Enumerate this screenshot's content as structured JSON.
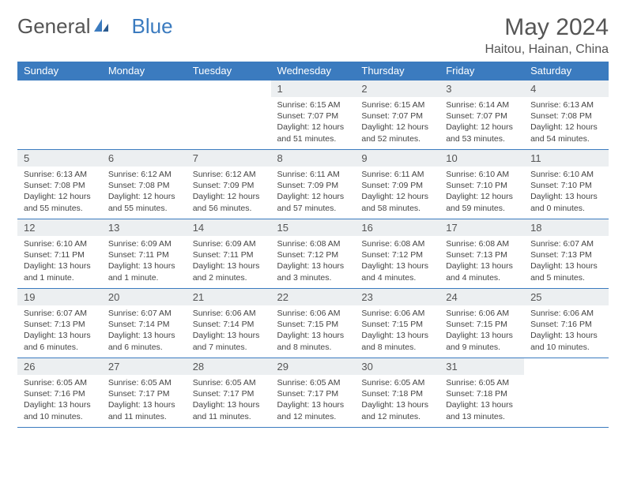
{
  "logo": {
    "text1": "General",
    "text2": "Blue"
  },
  "title": "May 2024",
  "location": "Haitou, Hainan, China",
  "colors": {
    "header_bg": "#3b7bbf",
    "header_text": "#ffffff",
    "daynum_bg": "#eceff1",
    "border": "#3b7bbf",
    "text": "#444444",
    "title_text": "#555555"
  },
  "weekdays": [
    "Sunday",
    "Monday",
    "Tuesday",
    "Wednesday",
    "Thursday",
    "Friday",
    "Saturday"
  ],
  "weeks": [
    [
      null,
      null,
      null,
      {
        "n": "1",
        "sr": "6:15 AM",
        "ss": "7:07 PM",
        "dl": "12 hours and 51 minutes."
      },
      {
        "n": "2",
        "sr": "6:15 AM",
        "ss": "7:07 PM",
        "dl": "12 hours and 52 minutes."
      },
      {
        "n": "3",
        "sr": "6:14 AM",
        "ss": "7:07 PM",
        "dl": "12 hours and 53 minutes."
      },
      {
        "n": "4",
        "sr": "6:13 AM",
        "ss": "7:08 PM",
        "dl": "12 hours and 54 minutes."
      }
    ],
    [
      {
        "n": "5",
        "sr": "6:13 AM",
        "ss": "7:08 PM",
        "dl": "12 hours and 55 minutes."
      },
      {
        "n": "6",
        "sr": "6:12 AM",
        "ss": "7:08 PM",
        "dl": "12 hours and 55 minutes."
      },
      {
        "n": "7",
        "sr": "6:12 AM",
        "ss": "7:09 PM",
        "dl": "12 hours and 56 minutes."
      },
      {
        "n": "8",
        "sr": "6:11 AM",
        "ss": "7:09 PM",
        "dl": "12 hours and 57 minutes."
      },
      {
        "n": "9",
        "sr": "6:11 AM",
        "ss": "7:09 PM",
        "dl": "12 hours and 58 minutes."
      },
      {
        "n": "10",
        "sr": "6:10 AM",
        "ss": "7:10 PM",
        "dl": "12 hours and 59 minutes."
      },
      {
        "n": "11",
        "sr": "6:10 AM",
        "ss": "7:10 PM",
        "dl": "13 hours and 0 minutes."
      }
    ],
    [
      {
        "n": "12",
        "sr": "6:10 AM",
        "ss": "7:11 PM",
        "dl": "13 hours and 1 minute."
      },
      {
        "n": "13",
        "sr": "6:09 AM",
        "ss": "7:11 PM",
        "dl": "13 hours and 1 minute."
      },
      {
        "n": "14",
        "sr": "6:09 AM",
        "ss": "7:11 PM",
        "dl": "13 hours and 2 minutes."
      },
      {
        "n": "15",
        "sr": "6:08 AM",
        "ss": "7:12 PM",
        "dl": "13 hours and 3 minutes."
      },
      {
        "n": "16",
        "sr": "6:08 AM",
        "ss": "7:12 PM",
        "dl": "13 hours and 4 minutes."
      },
      {
        "n": "17",
        "sr": "6:08 AM",
        "ss": "7:13 PM",
        "dl": "13 hours and 4 minutes."
      },
      {
        "n": "18",
        "sr": "6:07 AM",
        "ss": "7:13 PM",
        "dl": "13 hours and 5 minutes."
      }
    ],
    [
      {
        "n": "19",
        "sr": "6:07 AM",
        "ss": "7:13 PM",
        "dl": "13 hours and 6 minutes."
      },
      {
        "n": "20",
        "sr": "6:07 AM",
        "ss": "7:14 PM",
        "dl": "13 hours and 6 minutes."
      },
      {
        "n": "21",
        "sr": "6:06 AM",
        "ss": "7:14 PM",
        "dl": "13 hours and 7 minutes."
      },
      {
        "n": "22",
        "sr": "6:06 AM",
        "ss": "7:15 PM",
        "dl": "13 hours and 8 minutes."
      },
      {
        "n": "23",
        "sr": "6:06 AM",
        "ss": "7:15 PM",
        "dl": "13 hours and 8 minutes."
      },
      {
        "n": "24",
        "sr": "6:06 AM",
        "ss": "7:15 PM",
        "dl": "13 hours and 9 minutes."
      },
      {
        "n": "25",
        "sr": "6:06 AM",
        "ss": "7:16 PM",
        "dl": "13 hours and 10 minutes."
      }
    ],
    [
      {
        "n": "26",
        "sr": "6:05 AM",
        "ss": "7:16 PM",
        "dl": "13 hours and 10 minutes."
      },
      {
        "n": "27",
        "sr": "6:05 AM",
        "ss": "7:17 PM",
        "dl": "13 hours and 11 minutes."
      },
      {
        "n": "28",
        "sr": "6:05 AM",
        "ss": "7:17 PM",
        "dl": "13 hours and 11 minutes."
      },
      {
        "n": "29",
        "sr": "6:05 AM",
        "ss": "7:17 PM",
        "dl": "13 hours and 12 minutes."
      },
      {
        "n": "30",
        "sr": "6:05 AM",
        "ss": "7:18 PM",
        "dl": "13 hours and 12 minutes."
      },
      {
        "n": "31",
        "sr": "6:05 AM",
        "ss": "7:18 PM",
        "dl": "13 hours and 13 minutes."
      },
      null
    ]
  ],
  "labels": {
    "sunrise": "Sunrise:",
    "sunset": "Sunset:",
    "daylight": "Daylight:"
  }
}
